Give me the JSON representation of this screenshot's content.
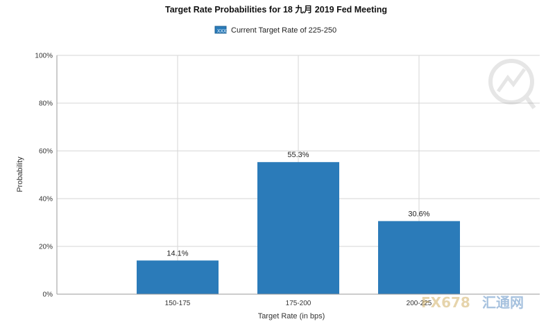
{
  "chart_data": {
    "type": "bar",
    "title": "Target Rate Probabilities for 18 九月 2019  Fed Meeting",
    "legend": {
      "label": "Current Target Rate of 225-250",
      "placement": "top-center"
    },
    "categories": [
      "150-175",
      "175-200",
      "200-225"
    ],
    "series": [
      {
        "name": "Current Target Rate of 225-250",
        "values": [
          14.1,
          55.3,
          30.6
        ]
      }
    ],
    "data_labels": [
      "14.1%",
      "55.3%",
      "30.6%"
    ],
    "xlabel": "Target Rate (in bps)",
    "ylabel": "Probability",
    "ylim": [
      0,
      100
    ],
    "yticks": [
      0,
      20,
      40,
      60,
      80,
      100
    ],
    "ytick_labels": [
      "0%",
      "20%",
      "40%",
      "60%",
      "80%",
      "100%"
    ],
    "grid": true,
    "colors": {
      "bar": "#2b7bb9",
      "grid": "#d6d6d6"
    }
  },
  "watermark": {
    "text_latin": "FX678",
    "text_cjk": "汇通网"
  }
}
